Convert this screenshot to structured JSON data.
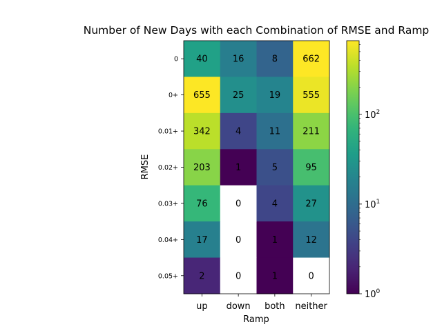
{
  "chart_data": {
    "type": "heatmap",
    "title": "Number of New Days with each Combination of RMSE and Ramp",
    "xlabel": "Ramp",
    "ylabel": "RMSE",
    "x_categories": [
      "up",
      "down",
      "both",
      "neither"
    ],
    "y_categories": [
      "0",
      "0+",
      "0.01+",
      "0.02+",
      "0.03+",
      "0.04+",
      "0.05+"
    ],
    "values": [
      [
        40,
        16,
        8,
        662
      ],
      [
        655,
        25,
        19,
        555
      ],
      [
        342,
        4,
        11,
        211
      ],
      [
        203,
        1,
        5,
        95
      ],
      [
        76,
        0,
        4,
        27
      ],
      [
        17,
        0,
        1,
        12
      ],
      [
        2,
        0,
        1,
        0
      ]
    ],
    "colorscale": "viridis",
    "color_scale_type": "log",
    "zero_cells_color": "#ffffff",
    "colorbar": {
      "vmin": 1,
      "vmax": 662,
      "ticks": [
        {
          "base": "10",
          "exp": "0"
        },
        {
          "base": "10",
          "exp": "1"
        },
        {
          "base": "10",
          "exp": "2"
        }
      ]
    }
  }
}
